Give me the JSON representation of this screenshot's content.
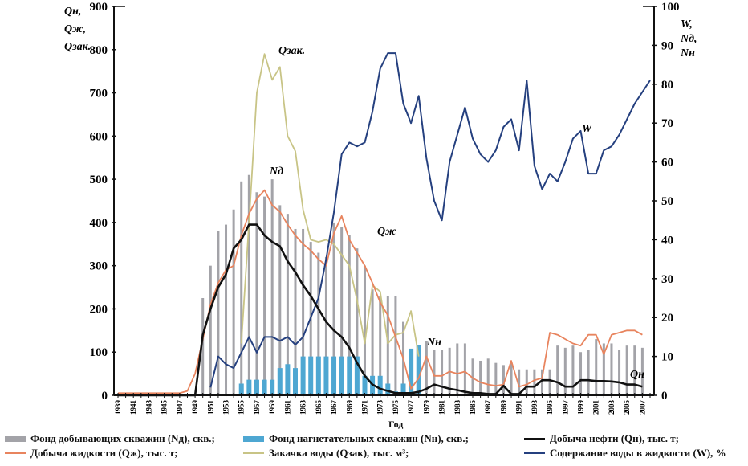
{
  "chart_data": {
    "type": "bar+line",
    "title": "",
    "xlabel": "Год",
    "ylabel_left": [
      "Qн,",
      "Qж,",
      "Qзак."
    ],
    "ylabel_right": [
      "W,",
      "Nд,",
      "Nн"
    ],
    "ylim_left": [
      0,
      900
    ],
    "ylim_right": [
      0,
      100
    ],
    "yticks_left": [
      0,
      100,
      200,
      300,
      400,
      500,
      600,
      700,
      800,
      900
    ],
    "yticks_right": [
      0,
      10,
      20,
      30,
      40,
      50,
      60,
      70,
      80,
      90,
      100
    ],
    "xlim": [
      1939,
      2008
    ],
    "xtick_labels": [
      "1939",
      "1941",
      "1943",
      "1945",
      "1947",
      "1949",
      "1951",
      "1953",
      "1955",
      "1957",
      "1959",
      "1961",
      "1963",
      "1965",
      "1967",
      "1969",
      "1971",
      "1973",
      "1975",
      "1977",
      "1979",
      "1981",
      "1983",
      "1985",
      "1987",
      "1989",
      "1991",
      "1993",
      "1995",
      "1997",
      "1999",
      "2001",
      "2003",
      "2005",
      "2007"
    ],
    "grid": false,
    "legend_position": "bottom",
    "annotations": [
      {
        "text": "Qзак.",
        "series": "Qzak"
      },
      {
        "text": "Nд",
        "series": "Nd"
      },
      {
        "text": "Qж",
        "series": "Qzh"
      },
      {
        "text": "Nн",
        "series": "Nn"
      },
      {
        "text": "W",
        "series": "W"
      },
      {
        "text": "Qн",
        "series": "Qn"
      }
    ],
    "series": [
      {
        "id": "Nd",
        "name": "Фонд добывающих скважин (Nд), скв.;",
        "type": "bar",
        "axis": "left",
        "color": "#a3a3a8",
        "x": [
          1950,
          1951,
          1952,
          1953,
          1954,
          1955,
          1956,
          1957,
          1958,
          1959,
          1960,
          1961,
          1962,
          1963,
          1964,
          1965,
          1966,
          1967,
          1968,
          1969,
          1970,
          1971,
          1972,
          1973,
          1974,
          1975,
          1976,
          1977,
          1978,
          1979,
          1980,
          1981,
          1982,
          1983,
          1984,
          1985,
          1986,
          1987,
          1988,
          1989,
          1990,
          1991,
          1992,
          1993,
          1994,
          1995,
          1996,
          1997,
          1998,
          1999,
          2000,
          2001,
          2002,
          2003,
          2004,
          2005,
          2006,
          2007
        ],
        "values": [
          225,
          300,
          380,
          395,
          430,
          495,
          510,
          470,
          460,
          500,
          440,
          420,
          385,
          385,
          355,
          330,
          320,
          400,
          390,
          370,
          340,
          300,
          245,
          230,
          230,
          230,
          170,
          90,
          115,
          125,
          105,
          105,
          110,
          120,
          120,
          85,
          80,
          85,
          75,
          70,
          75,
          60,
          60,
          60,
          60,
          60,
          115,
          110,
          115,
          100,
          105,
          130,
          120,
          120,
          105,
          115,
          115,
          110
        ]
      },
      {
        "id": "Nn",
        "name": "Фонд нагнетательных скважин (Nн), скв.;",
        "type": "bar",
        "axis": "right",
        "color": "#4ea7d2",
        "x": [
          1955,
          1956,
          1957,
          1958,
          1959,
          1960,
          1961,
          1962,
          1963,
          1964,
          1965,
          1966,
          1967,
          1968,
          1969,
          1970,
          1971,
          1972,
          1973,
          1974,
          1975,
          1976,
          1977,
          1978
        ],
        "values": [
          3,
          4,
          4,
          4,
          4,
          7,
          8,
          7,
          10,
          10,
          10,
          10,
          10,
          10,
          10,
          10,
          5,
          5,
          5,
          3,
          1,
          3,
          12,
          13
        ]
      },
      {
        "id": "Qn",
        "name": "Добыча нефти (Qн), тыс. т;",
        "type": "line",
        "axis": "left",
        "color": "#111111",
        "x": [
          1939,
          1949,
          1950,
          1951,
          1952,
          1953,
          1954,
          1955,
          1956,
          1957,
          1958,
          1959,
          1960,
          1961,
          1962,
          1963,
          1964,
          1965,
          1966,
          1967,
          1968,
          1969,
          1970,
          1971,
          1972,
          1973,
          1974,
          1975,
          1976,
          1977,
          1978,
          1979,
          1980,
          1981,
          1982,
          1983,
          1984,
          1985,
          1986,
          1987,
          1988,
          1989,
          1990,
          1991,
          1992,
          1993,
          1994,
          1995,
          1996,
          1997,
          1998,
          1999,
          2000,
          2001,
          2002,
          2003,
          2004,
          2005,
          2006,
          2007
        ],
        "values": [
          0,
          0,
          140,
          200,
          250,
          280,
          340,
          360,
          395,
          395,
          370,
          355,
          345,
          310,
          285,
          255,
          230,
          200,
          170,
          150,
          135,
          110,
          75,
          45,
          25,
          15,
          10,
          5,
          5,
          5,
          8,
          15,
          25,
          20,
          15,
          12,
          8,
          5,
          5,
          3,
          3,
          22,
          3,
          3,
          20,
          20,
          35,
          35,
          30,
          20,
          20,
          35,
          35,
          33,
          33,
          32,
          30,
          25,
          25,
          20
        ]
      },
      {
        "id": "Qzh",
        "name": "Добыча жидкости (Qж), тыс. т;",
        "type": "line",
        "axis": "left",
        "color": "#e8845e",
        "x": [
          1939,
          1940,
          1941,
          1942,
          1943,
          1944,
          1945,
          1946,
          1947,
          1948,
          1949,
          1950,
          1951,
          1952,
          1953,
          1954,
          1955,
          1956,
          1957,
          1958,
          1959,
          1960,
          1961,
          1962,
          1963,
          1964,
          1965,
          1966,
          1967,
          1968,
          1969,
          1970,
          1971,
          1972,
          1973,
          1974,
          1975,
          1976,
          1977,
          1978,
          1979,
          1980,
          1981,
          1982,
          1983,
          1984,
          1985,
          1986,
          1987,
          1988,
          1989,
          1990,
          1991,
          1992,
          1993,
          1994,
          1995,
          1996,
          1997,
          1998,
          1999,
          2000,
          2001,
          2002,
          2003,
          2004,
          2005,
          2006,
          2007
        ],
        "values": [
          5,
          5,
          5,
          5,
          5,
          5,
          5,
          5,
          5,
          10,
          50,
          130,
          210,
          260,
          290,
          300,
          370,
          420,
          455,
          475,
          440,
          425,
          395,
          370,
          350,
          335,
          315,
          300,
          375,
          415,
          360,
          330,
          300,
          260,
          215,
          185,
          135,
          85,
          15,
          40,
          90,
          45,
          45,
          55,
          50,
          55,
          40,
          30,
          25,
          22,
          25,
          80,
          20,
          25,
          35,
          40,
          145,
          140,
          130,
          120,
          115,
          140,
          140,
          95,
          140,
          145,
          150,
          150,
          140
        ]
      },
      {
        "id": "Qzak",
        "name": "Закачка воды (Qзак), тыс. м³;",
        "type": "line",
        "axis": "left",
        "color": "#c8c486",
        "x": [
          1955,
          1956,
          1957,
          1958,
          1959,
          1960,
          1961,
          1962,
          1963,
          1964,
          1965,
          1966,
          1967,
          1968,
          1969,
          1970,
          1971,
          1972,
          1973,
          1974,
          1975,
          1976,
          1977,
          1978
        ],
        "values": [
          120,
          400,
          700,
          790,
          730,
          760,
          600,
          565,
          430,
          360,
          355,
          360,
          350,
          325,
          300,
          220,
          120,
          255,
          240,
          120,
          140,
          145,
          195,
          90
        ]
      },
      {
        "id": "W",
        "name": "Содержание воды в жидкости (W), %",
        "type": "line",
        "axis": "right",
        "color": "#25407f",
        "x": [
          1951,
          1952,
          1953,
          1954,
          1955,
          1956,
          1957,
          1958,
          1959,
          1960,
          1961,
          1962,
          1963,
          1964,
          1965,
          1966,
          1967,
          1968,
          1969,
          1970,
          1971,
          1972,
          1973,
          1974,
          1975,
          1976,
          1977,
          1978,
          1979,
          1980,
          1981,
          1982,
          1983,
          1984,
          1985,
          1986,
          1987,
          1988,
          1989,
          1990,
          1991,
          1992,
          1993,
          1994,
          1995,
          1996,
          1997,
          1998,
          1999,
          2000,
          2001,
          2002,
          2003,
          2004,
          2005,
          2006,
          2007,
          2008
        ],
        "values": [
          2,
          10,
          8,
          7,
          11,
          15,
          11,
          15,
          15,
          14,
          15,
          13,
          15,
          20,
          25,
          35,
          47,
          62,
          65,
          64,
          65,
          73,
          84,
          88,
          88,
          75,
          70,
          77,
          61,
          50,
          45,
          60,
          67,
          74,
          66,
          62,
          60,
          63,
          69,
          71,
          63,
          81,
          59,
          53,
          57,
          55,
          60,
          66,
          68,
          57,
          57,
          63,
          64,
          67,
          71,
          75,
          78,
          81
        ]
      }
    ],
    "legend": [
      {
        "label": "Фонд добывающих скважин (Nд), скв.;",
        "kind": "bar",
        "color": "#a3a3a8"
      },
      {
        "label": "Фонд нагнетательных скважин (Nн), скв.;",
        "kind": "bar",
        "color": "#4ea7d2"
      },
      {
        "label": "Добыча нефти (Qн), тыс. т;",
        "kind": "line",
        "color": "#111111"
      },
      {
        "label": "Добыча жидкости (Qж), тыс. т;",
        "kind": "line",
        "color": "#e8845e"
      },
      {
        "label": "Закачка воды (Qзак), тыс. м³;",
        "kind": "line",
        "color": "#c8c486"
      },
      {
        "label": "Содержание воды в жидкости (W), %",
        "kind": "line",
        "color": "#25407f"
      }
    ]
  }
}
